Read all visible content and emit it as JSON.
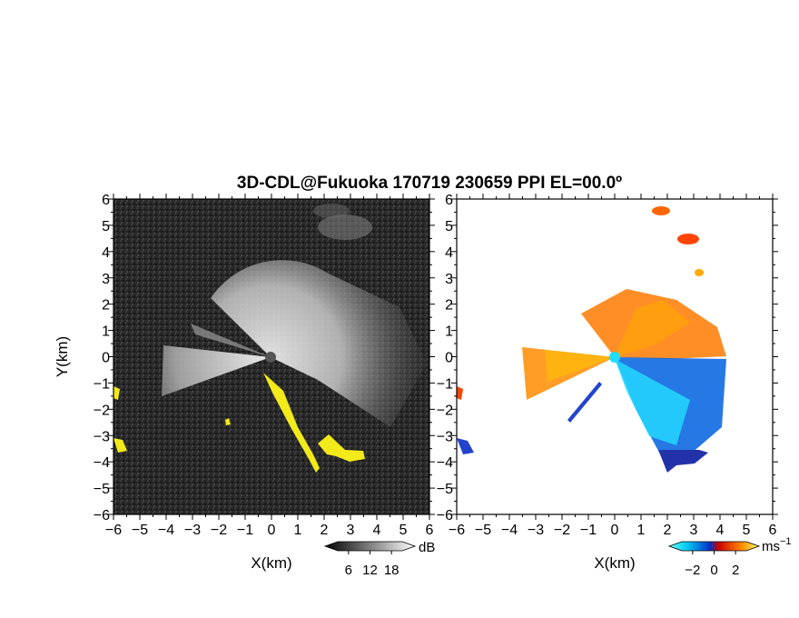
{
  "chart_data": {
    "type": "heatmap",
    "title": "3D-CDL@Fukuoka 170719 230659 PPI EL=00.0º",
    "panels": [
      {
        "name": "reflectivity",
        "xlabel": "X(km)",
        "ylabel": "Y(km)",
        "xlim": [
          -6,
          6
        ],
        "ylim": [
          -6,
          6
        ],
        "xticks": [
          "−6",
          "−5",
          "−4",
          "−3",
          "−2",
          "−1",
          "0",
          "1",
          "2",
          "3",
          "4",
          "5",
          "6"
        ],
        "yticks": [
          "6",
          "5",
          "4",
          "3",
          "2",
          "1",
          "0",
          "−1",
          "−2",
          "−3",
          "−4",
          "−5",
          "−6"
        ],
        "colorbar": {
          "unit": "dB",
          "ticks": [
            "6",
            "12",
            "18"
          ],
          "range": [
            3,
            21
          ]
        },
        "highlight_color": "#f2ea1a"
      },
      {
        "name": "doppler-velocity",
        "xlabel": "X(km)",
        "xlim": [
          -6,
          6
        ],
        "ylim": [
          -6,
          6
        ],
        "xticks": [
          "−6",
          "−5",
          "−4",
          "−3",
          "−2",
          "−1",
          "0",
          "1",
          "2",
          "3",
          "4",
          "5",
          "6"
        ],
        "yticks": [
          "6",
          "5",
          "4",
          "3",
          "2",
          "1",
          "0",
          "−1",
          "−2",
          "−3",
          "−4",
          "−5",
          "−6"
        ],
        "colorbar": {
          "unit": "ms",
          "unit_sup": "−1",
          "ticks": [
            "−2",
            "0",
            "2"
          ],
          "range": [
            -3,
            3
          ]
        }
      }
    ]
  }
}
